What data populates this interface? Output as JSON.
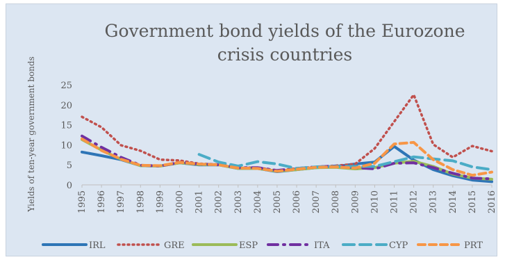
{
  "chart_data": {
    "type": "line",
    "title_line1": "Government bond yields of the Eurozone",
    "title_line2": "crisis countries",
    "ylabel": "Yields of ten-year government bonds",
    "xlabel": "",
    "x": [
      "1995",
      "1996",
      "1997",
      "1998",
      "1999",
      "2000",
      "2001",
      "2002",
      "2003",
      "2004",
      "2005",
      "2006",
      "2007",
      "2008",
      "2009",
      "2010",
      "2011",
      "2012",
      "2013",
      "2014",
      "2015",
      "2016"
    ],
    "ylim": [
      0,
      25
    ],
    "yticks": [
      "0",
      "5",
      "10",
      "15",
      "20",
      "25"
    ],
    "grid": false,
    "legend_position": "bottom",
    "series": [
      {
        "name": "IRL",
        "color": "#2e75b6",
        "dash": "solid",
        "values": [
          8.2,
          7.3,
          6.3,
          4.8,
          4.7,
          5.5,
          5.0,
          5.0,
          4.1,
          4.1,
          3.3,
          3.8,
          4.3,
          4.6,
          5.2,
          5.7,
          9.6,
          6.2,
          3.8,
          2.3,
          1.2,
          0.8
        ]
      },
      {
        "name": "GRE",
        "color": "#c0504d",
        "dash": "dot",
        "values": [
          17.0,
          14.4,
          9.9,
          8.5,
          6.3,
          6.1,
          5.3,
          5.1,
          4.3,
          4.3,
          3.6,
          4.1,
          4.5,
          4.8,
          5.2,
          9.1,
          15.8,
          22.5,
          10.1,
          6.9,
          9.7,
          8.4
        ]
      },
      {
        "name": "ESP",
        "color": "#9bbb59",
        "dash": "solid",
        "values": [
          11.3,
          8.7,
          6.4,
          4.8,
          4.7,
          5.5,
          5.1,
          5.0,
          4.1,
          4.1,
          3.4,
          3.8,
          4.3,
          4.4,
          4.0,
          4.3,
          5.4,
          5.9,
          4.6,
          2.7,
          1.7,
          1.4
        ]
      },
      {
        "name": "ITA",
        "color": "#7030a0",
        "dash": "dashdot",
        "values": [
          12.2,
          9.4,
          6.9,
          4.9,
          4.7,
          5.6,
          5.2,
          5.0,
          4.3,
          4.3,
          3.6,
          4.1,
          4.5,
          4.7,
          4.3,
          4.0,
          5.4,
          5.5,
          4.3,
          2.9,
          1.7,
          1.5
        ]
      },
      {
        "name": "CYP",
        "color": "#4bacc6",
        "dash": "longdash",
        "values": [
          null,
          null,
          null,
          null,
          null,
          null,
          7.6,
          5.7,
          4.7,
          5.8,
          5.2,
          4.1,
          4.5,
          4.6,
          4.6,
          4.6,
          5.8,
          7.0,
          6.5,
          6.0,
          4.5,
          3.8
        ]
      },
      {
        "name": "PRT",
        "color": "#f79646",
        "dash": "dash",
        "values": [
          11.5,
          8.6,
          6.4,
          4.9,
          4.8,
          5.6,
          5.2,
          5.0,
          4.2,
          4.1,
          3.4,
          3.9,
          4.4,
          4.5,
          4.2,
          5.4,
          10.2,
          10.6,
          6.3,
          3.8,
          2.4,
          3.2
        ]
      }
    ]
  }
}
